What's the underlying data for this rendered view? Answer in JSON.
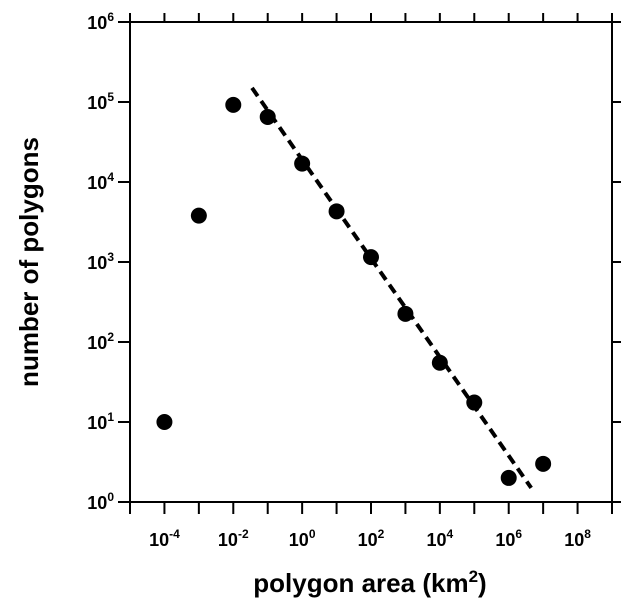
{
  "chart_data": {
    "type": "scatter",
    "xlabel_prefix": "polygon area (km",
    "xlabel_sup": "2",
    "xlabel_suffix": ")",
    "ylabel": "number of polygons",
    "x_scale": "log",
    "y_scale": "log",
    "xlim": [
      1e-05,
      1000000000
    ],
    "ylim": [
      1,
      1000000
    ],
    "x_tick_labels": [
      {
        "base": "10",
        "exp": "-4",
        "value": 0.0001
      },
      {
        "base": "10",
        "exp": "-2",
        "value": 0.01
      },
      {
        "base": "10",
        "exp": "0",
        "value": 1
      },
      {
        "base": "10",
        "exp": "2",
        "value": 100
      },
      {
        "base": "10",
        "exp": "4",
        "value": 10000
      },
      {
        "base": "10",
        "exp": "6",
        "value": 1000000
      },
      {
        "base": "10",
        "exp": "8",
        "value": 100000000
      }
    ],
    "y_tick_labels": [
      {
        "base": "10",
        "exp": "0",
        "value": 1
      },
      {
        "base": "10",
        "exp": "1",
        "value": 10
      },
      {
        "base": "10",
        "exp": "2",
        "value": 100
      },
      {
        "base": "10",
        "exp": "3",
        "value": 1000
      },
      {
        "base": "10",
        "exp": "4",
        "value": 10000
      },
      {
        "base": "10",
        "exp": "5",
        "value": 100000
      },
      {
        "base": "10",
        "exp": "6",
        "value": 1000000
      }
    ],
    "points": [
      {
        "x": 0.0001,
        "y": 10
      },
      {
        "x": 0.001,
        "y": 3800
      },
      {
        "x": 0.01,
        "y": 92000
      },
      {
        "x": 0.1,
        "y": 65000
      },
      {
        "x": 1,
        "y": 17000
      },
      {
        "x": 10,
        "y": 4300
      },
      {
        "x": 100,
        "y": 1150
      },
      {
        "x": 1000,
        "y": 225
      },
      {
        "x": 10000,
        "y": 55
      },
      {
        "x": 100000,
        "y": 17.5
      },
      {
        "x": 1000000,
        "y": 2
      },
      {
        "x": 10000000,
        "y": 3
      }
    ],
    "fit_line": {
      "style": "dashed",
      "x": [
        0.035,
        4500000
      ],
      "y": [
        150000,
        1.5
      ]
    },
    "marker_color": "#000000",
    "grid": false,
    "legend": "none"
  }
}
